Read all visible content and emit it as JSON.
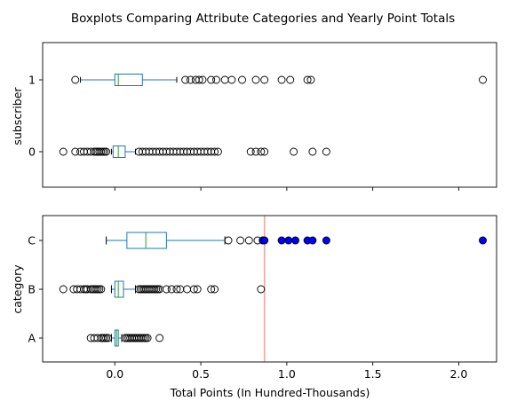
{
  "chart_data": {
    "type": "boxplot",
    "title": "Boxplots Comparing Attribute Categories and Yearly Point Totals",
    "xlabel": "Total Points (In Hundred-Thousands)",
    "xlim": [
      -0.42,
      2.22
    ],
    "xticks": [
      "0.0",
      "0.5",
      "1.0",
      "1.5",
      "2.0"
    ],
    "xtick_values": [
      0,
      0.5,
      1.0,
      1.5,
      2.0
    ],
    "colors": {
      "box": "#1f77b4",
      "median": "#2ca02c",
      "highlight": "#0000ff",
      "reference_line": "#f4a6a0"
    },
    "reference_line_x": 0.87,
    "panels": [
      {
        "ylabel": "subscriber",
        "categories": [
          "0",
          "1"
        ],
        "boxes": [
          {
            "category": "0",
            "whisker_low": -0.02,
            "q1": -0.01,
            "median": 0.02,
            "q3": 0.06,
            "whisker_high": 0.12,
            "outliers": [
              -0.3,
              -0.23,
              -0.2,
              -0.18,
              -0.16,
              -0.14,
              -0.12,
              -0.11,
              -0.1,
              -0.09,
              -0.08,
              -0.07,
              -0.06,
              -0.05,
              0.14,
              0.16,
              0.18,
              0.2,
              0.22,
              0.24,
              0.26,
              0.28,
              0.3,
              0.32,
              0.34,
              0.36,
              0.38,
              0.4,
              0.42,
              0.44,
              0.46,
              0.48,
              0.5,
              0.52,
              0.54,
              0.56,
              0.58,
              0.6,
              0.79,
              0.82,
              0.85,
              0.87,
              1.04,
              1.15,
              1.23
            ],
            "highlighted": []
          },
          {
            "category": "1",
            "whisker_low": -0.2,
            "q1": 0.0,
            "median": 0.02,
            "q3": 0.16,
            "whisker_high": 0.36,
            "outliers": [
              -0.23,
              0.41,
              0.44,
              0.47,
              0.49,
              0.51,
              0.56,
              0.59,
              0.64,
              0.68,
              0.74,
              0.82,
              0.87,
              0.97,
              1.02,
              1.12,
              1.14,
              2.14
            ],
            "highlighted": []
          }
        ]
      },
      {
        "ylabel": "category",
        "categories": [
          "A",
          "B",
          "C"
        ],
        "boxes": [
          {
            "category": "A",
            "whisker_low": -0.02,
            "q1": 0.0,
            "median": 0.01,
            "q3": 0.02,
            "whisker_high": 0.04,
            "outliers": [
              -0.14,
              -0.12,
              -0.1,
              -0.08,
              -0.07,
              -0.06,
              -0.05,
              -0.04,
              0.06,
              0.07,
              0.08,
              0.09,
              0.1,
              0.11,
              0.12,
              0.13,
              0.14,
              0.15,
              0.16,
              0.17,
              0.18,
              0.19,
              0.26
            ],
            "highlighted": []
          },
          {
            "category": "B",
            "whisker_low": -0.02,
            "q1": 0.0,
            "median": 0.02,
            "q3": 0.05,
            "whisker_high": 0.12,
            "outliers": [
              -0.3,
              -0.24,
              -0.22,
              -0.2,
              -0.18,
              -0.17,
              -0.16,
              -0.14,
              -0.13,
              -0.12,
              -0.11,
              -0.1,
              -0.09,
              -0.08,
              0.14,
              0.15,
              0.16,
              0.17,
              0.18,
              0.19,
              0.2,
              0.21,
              0.22,
              0.23,
              0.24,
              0.25,
              0.26,
              0.3,
              0.33,
              0.36,
              0.38,
              0.42,
              0.46,
              0.48,
              0.56,
              0.58,
              0.85
            ],
            "highlighted": []
          },
          {
            "category": "C",
            "whisker_low": -0.05,
            "q1": 0.07,
            "median": 0.18,
            "q3": 0.3,
            "whisker_high": 0.64,
            "outliers": [
              0.66,
              0.73,
              0.78,
              0.83
            ],
            "highlighted": [
              0.86,
              0.87,
              0.97,
              1.01,
              1.05,
              1.12,
              1.15,
              1.23,
              2.14
            ]
          }
        ]
      }
    ]
  }
}
